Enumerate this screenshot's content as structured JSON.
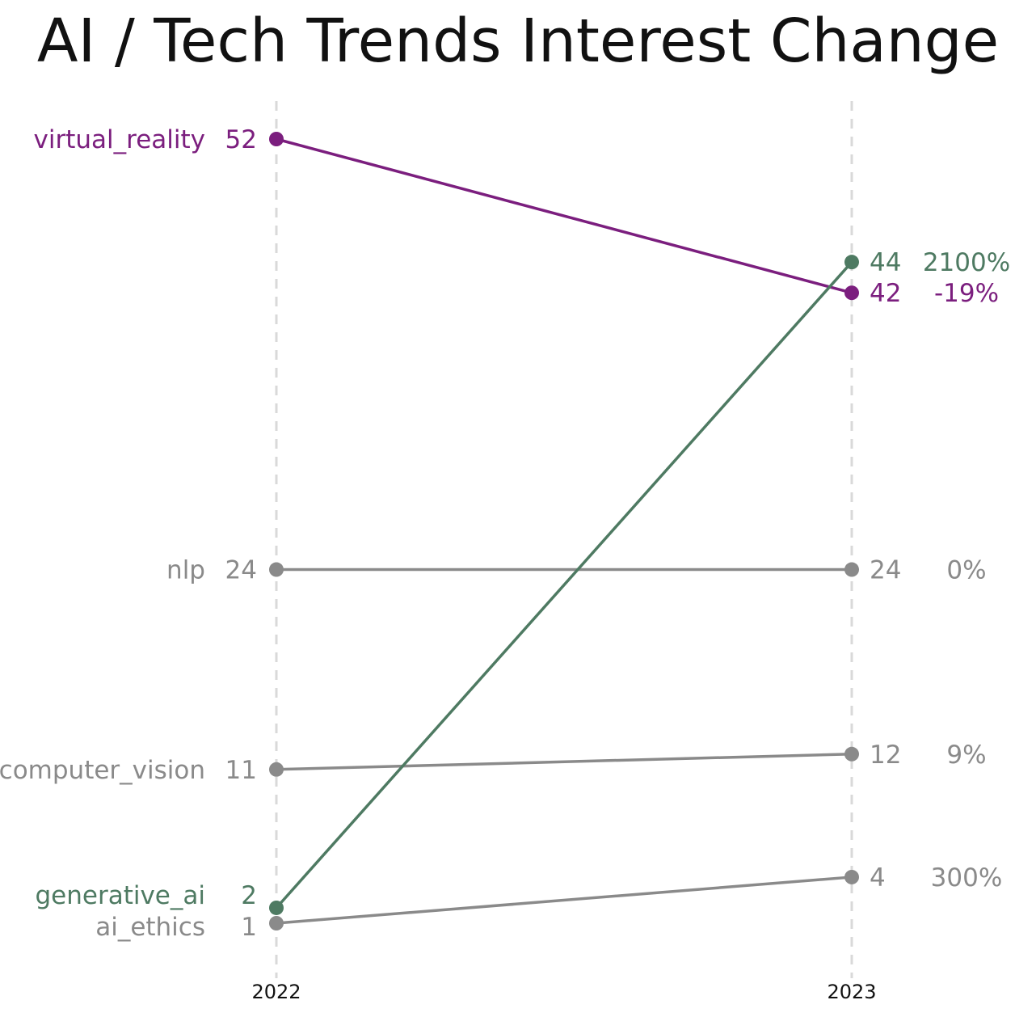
{
  "chart_data": {
    "type": "line",
    "title": "AI / Tech Trends Interest Change",
    "x": [
      "2022",
      "2023"
    ],
    "ylim": [
      0,
      55
    ],
    "grid": false,
    "colors": {
      "highlight_up": "#4e7a62",
      "highlight_down": "#7b1e7e",
      "neutral": "#8a8a8a"
    },
    "series": [
      {
        "name": "virtual_reality",
        "start": 52,
        "end": 42,
        "start_label": "52",
        "end_label": "42",
        "change_label": "-19%",
        "color_key": "highlight_down"
      },
      {
        "name": "generative_ai",
        "start": 2,
        "end": 44,
        "start_label": "2",
        "end_label": "44",
        "change_label": "2100%",
        "color_key": "highlight_up"
      },
      {
        "name": "nlp",
        "start": 24,
        "end": 24,
        "start_label": "24",
        "end_label": "24",
        "change_label": "0%",
        "color_key": "neutral"
      },
      {
        "name": "computer_vision",
        "start": 11,
        "end": 12,
        "start_label": "11",
        "end_label": "12",
        "change_label": "9%",
        "color_key": "neutral"
      },
      {
        "name": "ai_ethics",
        "start": 1,
        "end": 4,
        "start_label": "1",
        "end_label": "4",
        "change_label": "300%",
        "color_key": "neutral"
      }
    ]
  }
}
